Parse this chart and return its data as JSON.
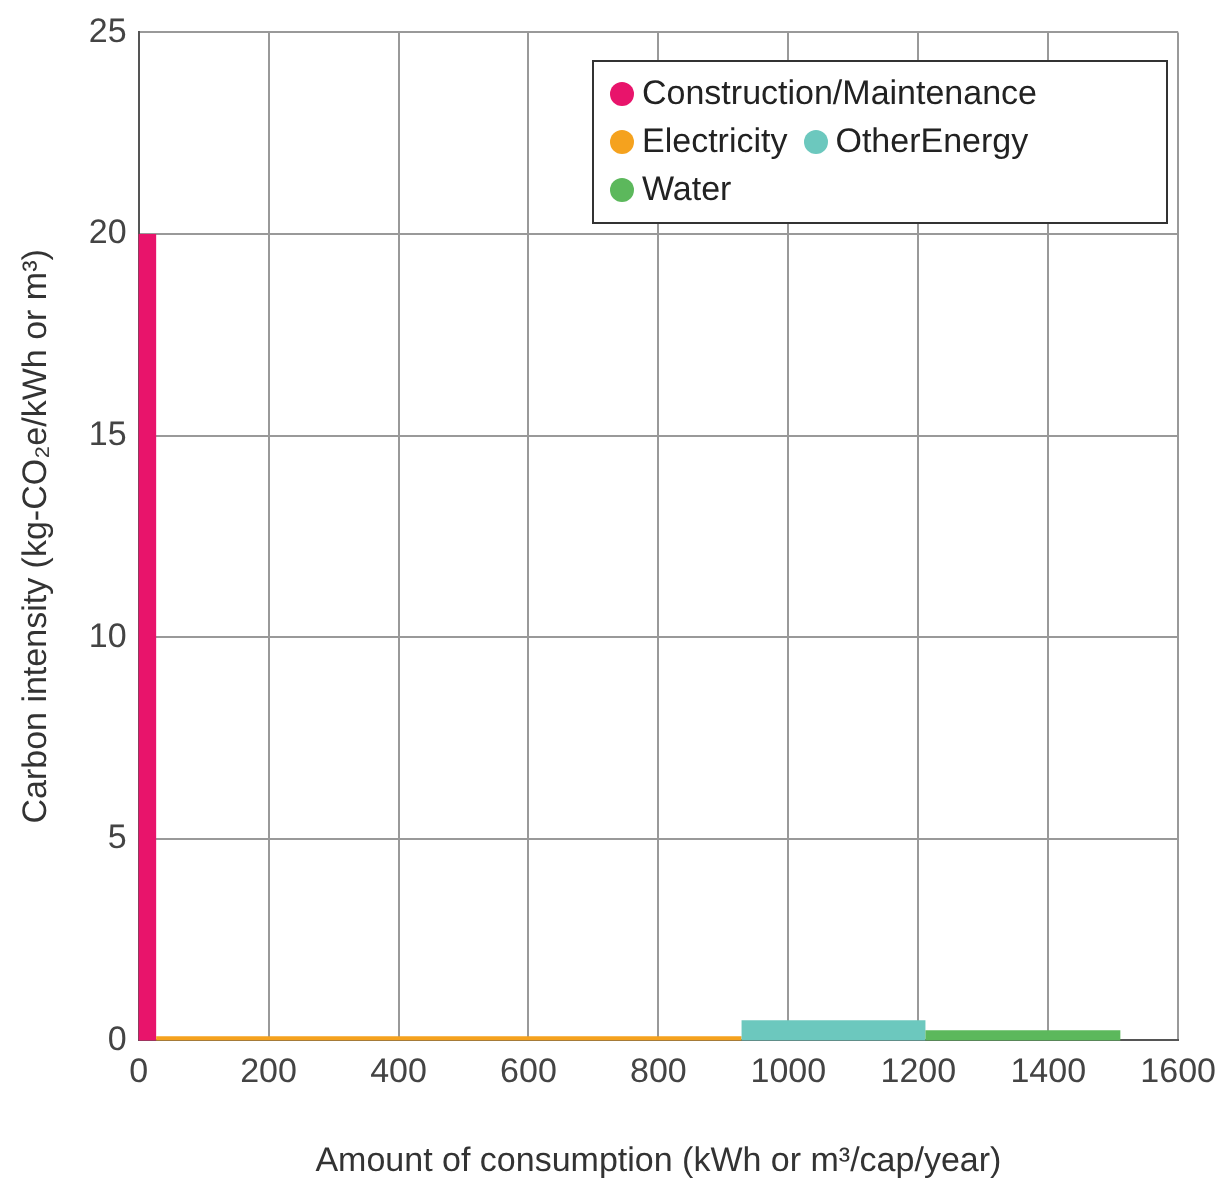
{
  "chart_data": {
    "type": "histogram",
    "xlabel": "Amount of consumption (kWh or m³/cap/year)",
    "ylabel": "Carbon intensity (kg-CO₂e/kWh or m³)",
    "xlim": [
      0,
      1600
    ],
    "xticks": [
      0,
      200,
      400,
      600,
      800,
      1000,
      1200,
      1400,
      1600
    ],
    "ylim": [
      0,
      25
    ],
    "yticks": [
      0,
      5,
      10,
      15,
      20,
      25
    ],
    "grid": true,
    "legend": "top right",
    "bins": [
      0,
      27,
      928,
      1211,
      1511
    ],
    "series": [
      {
        "name": "Construction/Maintenance",
        "color": "#e8146b",
        "values": [
          20,
          null,
          null,
          null
        ]
      },
      {
        "name": "Electricity",
        "color": "#f5a21e",
        "values": [
          null,
          0.1,
          null,
          null
        ]
      },
      {
        "name": "OtherEnergy",
        "color": "#6cc8be",
        "values": [
          null,
          null,
          0.5,
          null
        ]
      },
      {
        "name": "Water",
        "color": "#5cb85c",
        "values": [
          null,
          null,
          null,
          0.25
        ]
      }
    ]
  }
}
